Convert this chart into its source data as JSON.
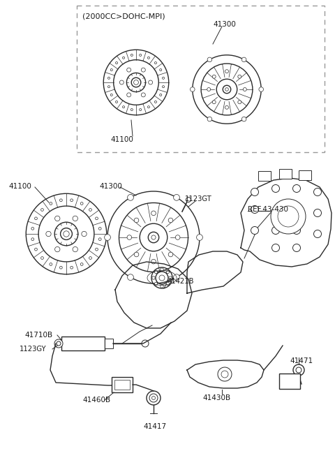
{
  "bg_color": "#ffffff",
  "line_color": "#2a2a2a",
  "label_color": "#1a1a1a",
  "fig_width": 4.8,
  "fig_height": 6.56,
  "dpi": 100,
  "labels": {
    "dashed_box_text": "(2000CC>DOHC-MPI)",
    "41100_top": "41100",
    "41300_top": "41300",
    "41100": "41100",
    "41300": "41300",
    "1123GT": "1123GT",
    "41421B": "41421B",
    "REF4330": "REF.43-430",
    "41710B": "41710B",
    "1123GY": "1123GY",
    "41460B": "41460B",
    "41417": "41417",
    "41430B": "41430B",
    "41471": "41471"
  }
}
